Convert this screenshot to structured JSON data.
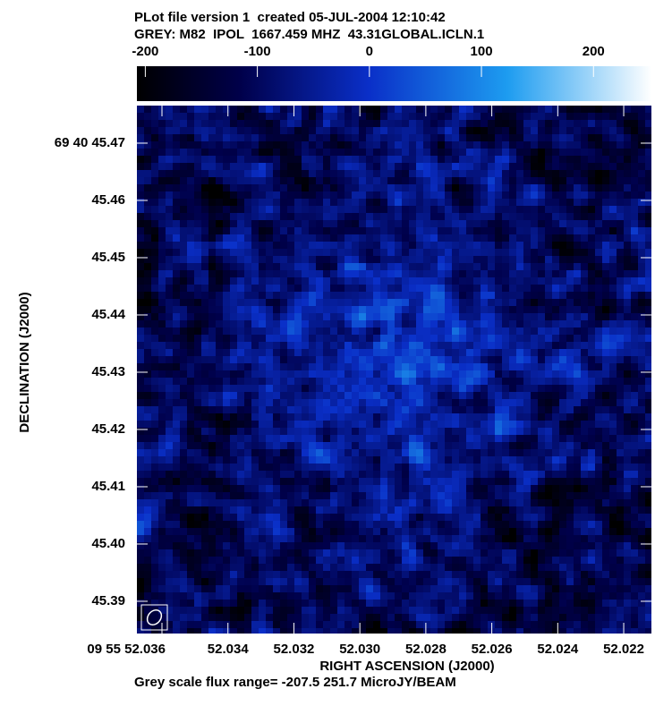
{
  "chart_data": {
    "type": "image",
    "title": "PLot file version 1  created 05-JUL-2004 12:10:42",
    "subtitle": "GREY: M82  IPOL  1667.459 MHZ  43.31GLOBAL.ICLN.1",
    "x_label": "RIGHT ASCENSION (J2000)",
    "y_label": "DECLINATION (J2000)",
    "footer": "Grey scale flux range= -207.5 251.7 MicroJY/BEAM",
    "clim": [
      -207.5,
      251.7
    ],
    "cticks": [
      -200,
      -100,
      0,
      100,
      200
    ],
    "xlim": [
      52.03676,
      52.02116
    ],
    "xticks": [
      {
        "value": 52.036,
        "label": "09 55 52.036"
      },
      52.034,
      52.032,
      {
        "value": 52.03,
        "label": "52.030"
      },
      52.028,
      52.026,
      52.024,
      52.022
    ],
    "ylim": [
      45.38437,
      45.47656
    ],
    "yticks": [
      {
        "value": 45.47,
        "label": "69 40 45.47"
      },
      45.46,
      45.45,
      45.44,
      45.43,
      45.42,
      45.41,
      {
        "value": 45.4,
        "label": "45.40"
      },
      45.39
    ]
  }
}
